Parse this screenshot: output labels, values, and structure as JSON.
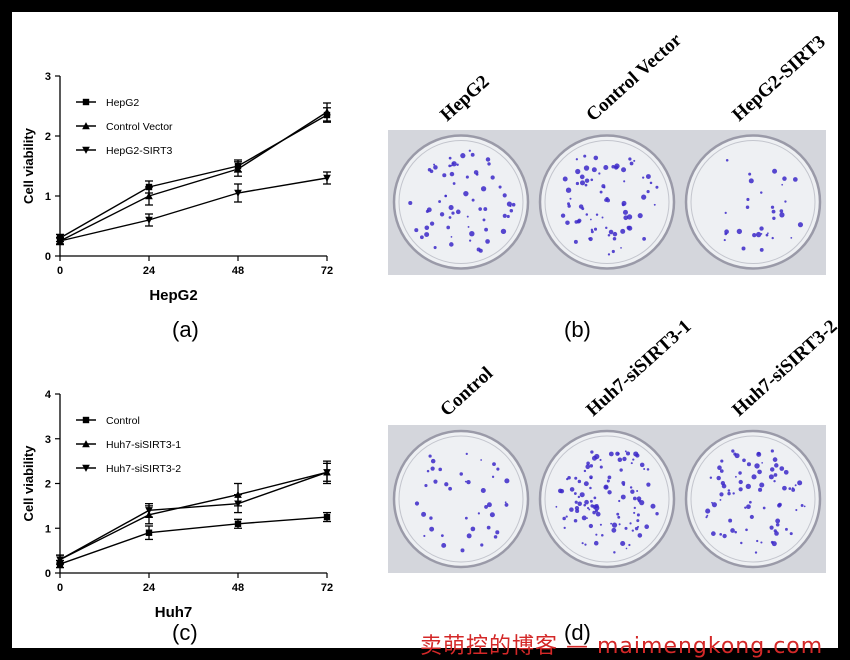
{
  "panels": {
    "a": "(a)",
    "b": "(b)",
    "c": "(c)",
    "d": "(d)"
  },
  "chart_data": [
    {
      "type": "line",
      "panel": "a",
      "xlabel": "HepG2",
      "ylabel": "Cell viability",
      "x": [
        0,
        24,
        48,
        72
      ],
      "xlim": [
        0,
        72
      ],
      "ylim": [
        0,
        3
      ],
      "yticks": [
        0,
        1,
        2,
        3
      ],
      "legend_position": "top-left",
      "series": [
        {
          "name": "HepG2",
          "marker": "square",
          "values": [
            0.3,
            1.15,
            1.5,
            2.35
          ],
          "errors": [
            0.06,
            0.1,
            0.1,
            0.12
          ]
        },
        {
          "name": "Control Vector",
          "marker": "triangle-up",
          "values": [
            0.25,
            1.0,
            1.45,
            2.4
          ],
          "errors": [
            0.06,
            0.15,
            0.12,
            0.15
          ]
        },
        {
          "name": "HepG2-SIRT3",
          "marker": "triangle-down",
          "values": [
            0.25,
            0.6,
            1.05,
            1.3
          ],
          "errors": [
            0.05,
            0.1,
            0.15,
            0.1
          ]
        }
      ]
    },
    {
      "type": "line",
      "panel": "c",
      "xlabel": "Huh7",
      "ylabel": "Cell viability",
      "x": [
        0,
        24,
        48,
        72
      ],
      "xlim": [
        0,
        72
      ],
      "ylim": [
        0,
        4
      ],
      "yticks": [
        0,
        1,
        2,
        3,
        4
      ],
      "legend_position": "top-left",
      "series": [
        {
          "name": "Control",
          "marker": "square",
          "values": [
            0.2,
            0.9,
            1.1,
            1.25
          ],
          "errors": [
            0.08,
            0.15,
            0.1,
            0.1
          ]
        },
        {
          "name": "Huh7-siSIRT3-1",
          "marker": "triangle-up",
          "values": [
            0.3,
            1.3,
            1.75,
            2.25
          ],
          "errors": [
            0.1,
            0.2,
            0.25,
            0.25
          ]
        },
        {
          "name": "Huh7-siSIRT3-2",
          "marker": "triangle-down",
          "values": [
            0.3,
            1.4,
            1.55,
            2.25
          ],
          "errors": [
            0.1,
            0.15,
            0.2,
            0.2
          ]
        }
      ]
    }
  ],
  "colony_panels": [
    {
      "panel": "b",
      "labels": [
        "HepG2",
        "Control Vector",
        "HepG2-SIRT3"
      ],
      "density": [
        65,
        75,
        32
      ]
    },
    {
      "panel": "d",
      "labels": [
        "Control",
        "Huh7-siSIRT3-1",
        "Huh7-siSIRT3-2"
      ],
      "density": [
        40,
        110,
        80
      ]
    }
  ],
  "watermark": "卖萌控的博客 — maimengkong.com",
  "colors": {
    "line": "#000000",
    "dish_edge": "#9a9aa8",
    "dish_fill": "#eef0f3",
    "colony": "#3b28c8"
  }
}
